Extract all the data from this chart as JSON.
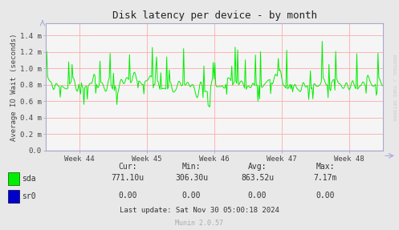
{
  "title": "Disk latency per device - by month",
  "ylabel": "Average IO Wait (seconds)",
  "background_color": "#e8e8e8",
  "plot_bg_color": "#f5f5f5",
  "grid_color": "#ffaaaa",
  "line_color_sda": "#00ee00",
  "line_color_sr0": "#0000cc",
  "ytick_labels": [
    "0.0",
    "0.2 m",
    "0.4 m",
    "0.6 m",
    "0.8 m",
    "1.0 m",
    "1.2 m",
    "1.4 m"
  ],
  "week_labels": [
    "Week 44",
    "Week 45",
    "Week 46",
    "Week 47",
    "Week 48"
  ],
  "legend_sda": "sda",
  "legend_sr0": "sr0",
  "cur_sda": "771.10u",
  "min_sda": "306.30u",
  "avg_sda": "863.52u",
  "max_sda": "7.17m",
  "cur_sr0": "0.00",
  "min_sr0": "0.00",
  "avg_sr0": "0.00",
  "max_sr0": "0.00",
  "last_update": "Last update: Sat Nov 30 05:00:18 2024",
  "munin_version": "Munin 2.0.57",
  "rrdtool_text": "RRDTOOL / TOBI OETIKER"
}
